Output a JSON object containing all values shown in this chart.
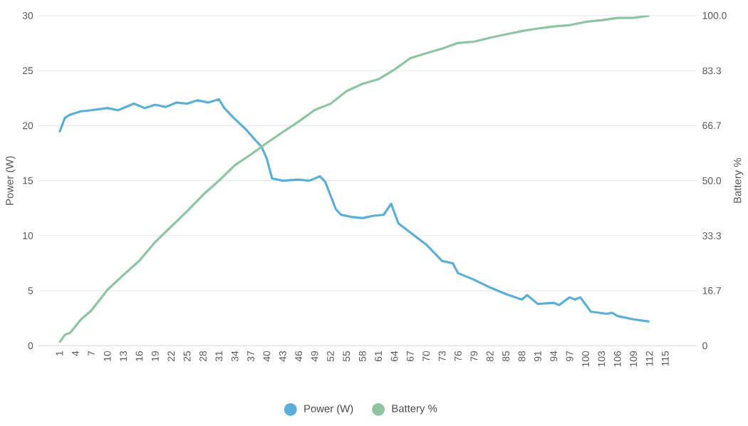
{
  "chart_data": {
    "type": "line",
    "ylabel": "Power (W)",
    "y2label": "Battery %",
    "xlim": [
      -3,
      121
    ],
    "xticks": [
      1,
      4,
      7,
      10,
      13,
      16,
      19,
      22,
      25,
      28,
      31,
      34,
      37,
      40,
      43,
      46,
      49,
      52,
      55,
      58,
      61,
      64,
      67,
      70,
      73,
      76,
      79,
      82,
      85,
      88,
      91,
      94,
      97,
      100,
      103,
      106,
      109,
      112,
      115
    ],
    "ylim": [
      0,
      30
    ],
    "yticks": [
      0,
      5,
      10,
      15,
      20,
      25,
      30
    ],
    "y2lim": [
      0,
      100
    ],
    "y2ticks": [
      0,
      {
        "value": 16.7,
        "label": "16.7"
      },
      {
        "value": 33.3,
        "label": "33.3"
      },
      {
        "value": 50,
        "label": "50.0"
      },
      {
        "value": 66.7,
        "label": "66.7"
      },
      {
        "value": 83.3,
        "label": "83.3"
      },
      {
        "value": 100,
        "label": "100.0"
      }
    ],
    "grid": "y",
    "legend": "bottom",
    "line_style": "solid",
    "series": [
      {
        "name": "Power (W)",
        "color": "#5aafd9",
        "x": [
          1,
          2,
          3,
          5,
          7,
          10,
          12,
          15,
          17,
          19,
          21,
          23,
          25,
          27,
          29,
          31,
          32,
          34,
          36,
          38,
          39,
          40,
          41,
          43,
          46,
          48,
          50,
          51,
          53,
          54,
          56,
          58,
          60,
          62,
          63.4,
          64.8,
          67,
          70,
          73,
          75,
          76,
          79,
          82,
          85,
          88,
          89,
          91,
          94,
          95,
          97,
          98,
          99,
          101,
          104,
          105,
          106,
          109,
          112
        ],
        "values": [
          19.4,
          20.7,
          21.0,
          21.3,
          21.4,
          21.6,
          21.4,
          22.0,
          21.6,
          21.9,
          21.7,
          22.1,
          22.0,
          22.3,
          22.1,
          22.4,
          21.6,
          20.6,
          19.7,
          18.6,
          18.1,
          17.0,
          15.2,
          15.0,
          15.1,
          15.0,
          15.4,
          14.9,
          12.4,
          11.9,
          11.7,
          11.6,
          11.8,
          11.9,
          12.9,
          11.1,
          10.3,
          9.2,
          7.7,
          7.5,
          6.6,
          6.0,
          5.3,
          4.7,
          4.2,
          4.6,
          3.8,
          3.9,
          3.7,
          4.4,
          4.2,
          4.4,
          3.1,
          2.9,
          3.0,
          2.7,
          2.4,
          2.2
        ]
      },
      {
        "name": "Battery %",
        "color": "#8cc5a0",
        "axis": "y2",
        "x": [
          1,
          2,
          3,
          5,
          7,
          10,
          13,
          16,
          19,
          22,
          25,
          28,
          31,
          34,
          37,
          40,
          43,
          46,
          49,
          52,
          55,
          58,
          61,
          64,
          67,
          70,
          73,
          76,
          79,
          82,
          85,
          88,
          91,
          94,
          97,
          100,
          103,
          106,
          109,
          112
        ],
        "values": [
          1.0,
          3.3,
          3.9,
          7.9,
          10.7,
          16.9,
          21.4,
          25.7,
          31.4,
          36.1,
          40.7,
          45.7,
          50.0,
          54.7,
          57.9,
          61.4,
          64.7,
          67.9,
          71.4,
          73.3,
          77.1,
          79.3,
          80.7,
          83.6,
          87.1,
          88.6,
          90.0,
          91.7,
          92.1,
          93.3,
          94.3,
          95.3,
          96.1,
          96.7,
          97.1,
          98.1,
          98.6,
          99.3,
          99.3,
          100.0
        ]
      }
    ]
  }
}
